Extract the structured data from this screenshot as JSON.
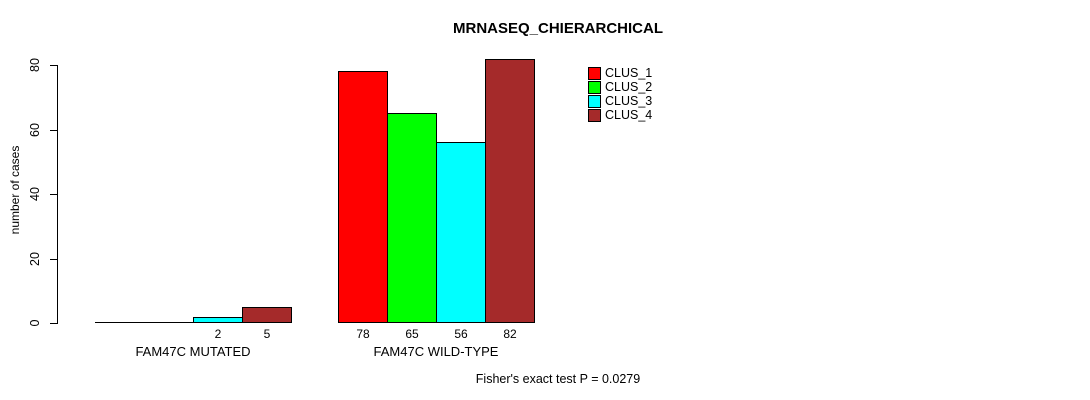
{
  "chart_data": {
    "type": "bar",
    "title": "MRNASEQ_CHIERARCHICAL",
    "ylabel": "number of cases",
    "xlabel": "",
    "ylim": [
      0,
      80
    ],
    "yticks": [
      0,
      20,
      40,
      60,
      80
    ],
    "grid": false,
    "legend_position": "top-right",
    "categories": [
      "FAM47C MUTATED",
      "FAM47C WILD-TYPE"
    ],
    "series": [
      {
        "name": "CLUS_1",
        "color": "#FF0000",
        "values": [
          0,
          78
        ]
      },
      {
        "name": "CLUS_2",
        "color": "#00FF00",
        "values": [
          0,
          65
        ]
      },
      {
        "name": "CLUS_3",
        "color": "#00FFFF",
        "values": [
          2,
          56
        ]
      },
      {
        "name": "CLUS_4",
        "color": "#A52A2A",
        "values": [
          5,
          82
        ]
      }
    ],
    "annotation": "Fisher's exact test P = 0.0279"
  }
}
